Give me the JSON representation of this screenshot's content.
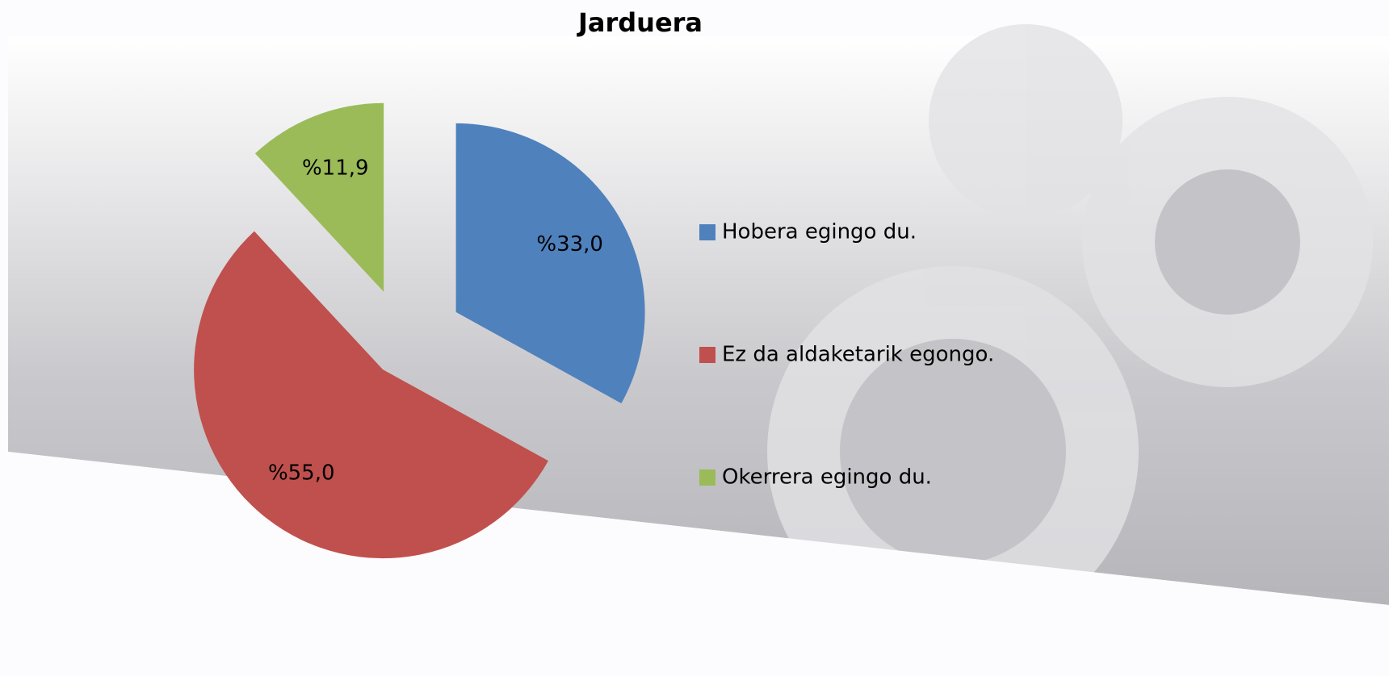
{
  "chart_data": {
    "type": "pie",
    "title": "Jarduera",
    "categories": [
      "Hobera egingo du.",
      "Ez da aldaketarik egongo.",
      "Okerrera egingo du."
    ],
    "values": [
      33.0,
      55.0,
      11.9
    ],
    "value_labels": [
      "%33,0",
      "%55,0",
      "%11,9"
    ],
    "colors": [
      "#4f81bd",
      "#c0504d",
      "#9bbb59"
    ],
    "legend": "right"
  }
}
